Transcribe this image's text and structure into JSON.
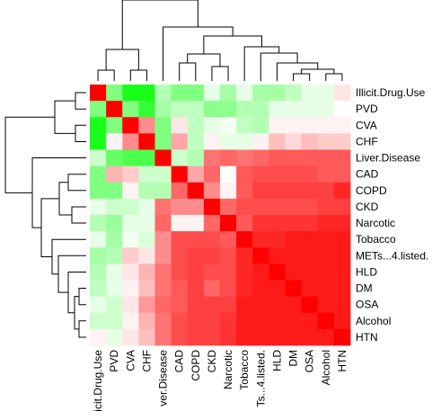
{
  "chart_data": {
    "type": "heatmap",
    "title": "",
    "xlabel": "",
    "ylabel": "",
    "row_labels": [
      "Illicit.Drug.Use",
      "PVD",
      "CVA",
      "CHF",
      "Liver.Disease",
      "CAD",
      "COPD",
      "CKD",
      "Narcotic",
      "Tobacco",
      "METs...4.listed.",
      "HLD",
      "DM",
      "OSA",
      "Alcohol",
      "HTN"
    ],
    "col_labels": [
      "Illicit.Drug.Use",
      "PVD",
      "CVA",
      "CHF",
      "Liver.Disease",
      "CAD",
      "COPD",
      "CKD",
      "Narcotic",
      "Tobacco",
      "METs...4.listed.",
      "HLD",
      "DM",
      "OSA",
      "Alcohol",
      "HTN"
    ],
    "col_labels_display": [
      "icit.Drug.Use",
      "PVD",
      "CVA",
      "CHF",
      "ver.Disease",
      "CAD",
      "COPD",
      "CKD",
      "Narcotic",
      "Tobacco",
      "Ts...4.listed.",
      "HLD",
      "DM",
      "OSA",
      "Alcohol",
      "HTN"
    ],
    "color_scale": {
      "low": "#00ff00",
      "mid": "#ffffff",
      "high": "#ff0000",
      "range": [
        -1,
        1
      ]
    },
    "values": [
      [
        1.0,
        -0.5,
        -0.9,
        -0.9,
        -0.3,
        -0.5,
        -0.5,
        -0.1,
        -0.35,
        -0.1,
        -0.35,
        -0.35,
        -0.25,
        -0.1,
        -0.1,
        0.1
      ],
      [
        -0.5,
        1.0,
        -0.5,
        -0.8,
        -0.35,
        -0.25,
        -0.25,
        -0.45,
        -0.45,
        -0.3,
        -0.3,
        -0.1,
        -0.1,
        -0.1,
        -0.1,
        0.0
      ],
      [
        -0.9,
        -0.5,
        1.0,
        0.45,
        -0.5,
        0.1,
        -0.25,
        -0.1,
        -0.05,
        -0.25,
        -0.3,
        0.05,
        0.05,
        0.05,
        0.05,
        0.05
      ],
      [
        -0.9,
        0.05,
        0.45,
        1.0,
        -0.5,
        0.35,
        -0.25,
        0.05,
        -0.1,
        -0.1,
        0.05,
        0.25,
        0.15,
        0.25,
        0.2,
        0.2
      ],
      [
        -0.2,
        -0.6,
        -0.7,
        -0.7,
        1.0,
        -0.2,
        -0.3,
        0.55,
        0.6,
        0.55,
        0.6,
        0.65,
        0.65,
        0.65,
        0.65,
        0.65
      ],
      [
        -0.5,
        0.3,
        0.2,
        -0.2,
        -0.2,
        1.0,
        0.35,
        0.6,
        0.0,
        0.65,
        0.7,
        0.7,
        0.7,
        0.7,
        0.65,
        0.65
      ],
      [
        -0.5,
        -0.5,
        0.05,
        -0.3,
        -0.3,
        0.6,
        1.0,
        0.45,
        0.05,
        0.65,
        0.75,
        0.75,
        0.75,
        0.75,
        0.75,
        0.85
      ],
      [
        -0.1,
        -0.2,
        -0.2,
        -0.1,
        0.55,
        0.45,
        0.45,
        1.0,
        0.6,
        0.7,
        0.7,
        0.7,
        0.7,
        0.7,
        0.75,
        0.75
      ],
      [
        -0.3,
        -0.4,
        -0.1,
        -0.1,
        0.6,
        0.05,
        0.05,
        0.6,
        1.0,
        0.65,
        0.8,
        0.8,
        0.8,
        0.8,
        0.85,
        0.85
      ],
      [
        -0.1,
        -0.35,
        -0.05,
        -0.15,
        0.45,
        0.7,
        0.7,
        0.7,
        0.65,
        1.0,
        0.85,
        0.85,
        0.9,
        0.9,
        0.9,
        0.9
      ],
      [
        -0.35,
        -0.3,
        0.2,
        0.1,
        0.45,
        0.7,
        0.75,
        0.75,
        0.7,
        0.85,
        1.0,
        0.9,
        0.9,
        0.9,
        0.9,
        0.9
      ],
      [
        -0.3,
        -0.1,
        0.1,
        0.3,
        0.55,
        0.7,
        0.75,
        0.7,
        0.7,
        0.85,
        0.9,
        1.0,
        0.9,
        0.9,
        0.9,
        0.9
      ],
      [
        -0.25,
        -0.1,
        0.05,
        0.25,
        0.55,
        0.65,
        0.75,
        0.6,
        0.7,
        0.85,
        0.9,
        0.9,
        1.0,
        0.9,
        0.9,
        0.9
      ],
      [
        -0.1,
        -0.2,
        0.1,
        0.4,
        0.6,
        0.65,
        0.75,
        0.75,
        0.75,
        0.9,
        0.9,
        0.9,
        0.9,
        1.0,
        0.9,
        0.9
      ],
      [
        -0.2,
        -0.2,
        0.05,
        0.3,
        0.55,
        0.7,
        0.75,
        0.75,
        0.8,
        0.9,
        0.9,
        0.9,
        0.9,
        0.9,
        1.0,
        0.9
      ],
      [
        0.05,
        -0.1,
        0.1,
        0.25,
        0.55,
        0.7,
        0.75,
        0.75,
        0.8,
        0.9,
        0.9,
        0.9,
        0.9,
        0.9,
        0.9,
        1.0
      ]
    ],
    "dendrogram_merge_order": [
      [
        "Illicit.Drug.Use",
        "PVD"
      ],
      [
        "CVA",
        "CHF"
      ],
      [
        [
          "Illicit.Drug.Use",
          "PVD"
        ],
        [
          "CVA",
          "CHF"
        ]
      ],
      [
        "CAD",
        "COPD"
      ],
      [
        "CKD",
        "Narcotic"
      ],
      [
        [
          "CAD",
          "COPD"
        ],
        [
          "CKD",
          "Narcotic"
        ]
      ],
      [
        "DM",
        "OSA"
      ],
      [
        "Alcohol",
        "HTN"
      ],
      [
        [
          "DM",
          "OSA"
        ],
        [
          "Alcohol",
          "HTN"
        ]
      ],
      [
        "HLD",
        [
          "DM",
          "OSA",
          "Alcohol",
          "HTN"
        ]
      ],
      [
        "METs...4.listed.",
        [
          "HLD",
          "DM",
          "OSA",
          "Alcohol",
          "HTN"
        ]
      ],
      [
        "Tobacco",
        [
          "METs...4.listed.",
          "HLD",
          "DM",
          "OSA",
          "Alcohol",
          "HTN"
        ]
      ],
      [
        [
          "CAD",
          "COPD",
          "CKD",
          "Narcotic"
        ],
        [
          "Tobacco",
          "METs...4.listed.",
          "HLD",
          "DM",
          "OSA",
          "Alcohol",
          "HTN"
        ]
      ],
      [
        "Liver.Disease",
        [
          "CAD",
          "COPD",
          "CKD",
          "Narcotic",
          "Tobacco",
          "METs...4.listed.",
          "HLD",
          "DM",
          "OSA",
          "Alcohol",
          "HTN"
        ]
      ],
      [
        [
          "Illicit.Drug.Use",
          "PVD",
          "CVA",
          "CHF"
        ],
        [
          "Liver.Disease",
          "CAD",
          "COPD",
          "CKD",
          "Narcotic",
          "Tobacco",
          "METs...4.listed.",
          "HLD",
          "DM",
          "OSA",
          "Alcohol",
          "HTN"
        ]
      ]
    ],
    "grid": false,
    "legend": "none"
  }
}
